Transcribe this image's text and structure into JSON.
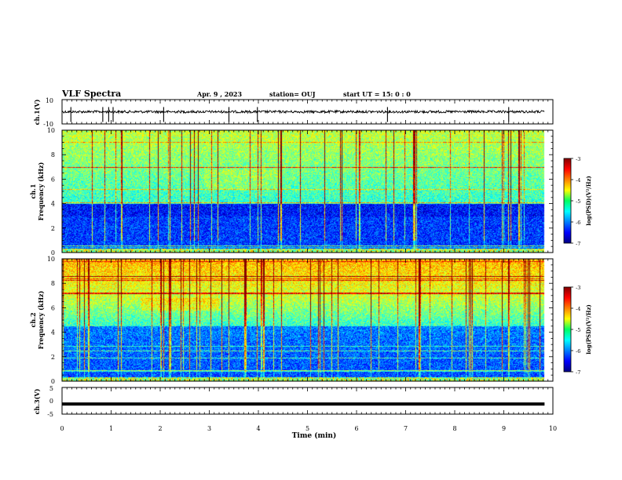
{
  "header": {
    "title": "VLF Spectra",
    "date": "Apr. 9 , 2023",
    "station": "station= OUJ",
    "start": "start UT = 15: 0 : 0"
  },
  "chart_data": [
    {
      "type": "line",
      "id": "ch1-waveform",
      "ylabel": "ch.1(V)",
      "ylim": [
        -10,
        10
      ],
      "yticks": [
        "10",
        "-10"
      ],
      "baseline": 0,
      "spikes_min": [
        0.18,
        0.83,
        0.95,
        1.04,
        2.07,
        3.4,
        3.98,
        6.63,
        9.1
      ],
      "xlim": [
        0,
        10
      ],
      "color": "#000000"
    },
    {
      "type": "heatmap",
      "id": "ch1-spectrogram",
      "ylabel": "ch.1\nFrequency (kHz)",
      "ylabel_line1": "ch.1",
      "ylabel_line2": "Frequency (kHz)",
      "xlim": [
        0,
        10
      ],
      "ylim": [
        0,
        10
      ],
      "yticks": [
        0,
        2,
        4,
        6,
        8,
        10
      ],
      "data_end_min": 9.83,
      "colorbar": {
        "range": [
          -7,
          -3
        ],
        "ticks": [
          "-3",
          "-4",
          "-5",
          "-6",
          "-7"
        ],
        "label": "log(PSD)(V²/Hz)",
        "colormap": "jet"
      }
    },
    {
      "type": "heatmap",
      "id": "ch2-spectrogram",
      "ylabel_line1": "ch.2",
      "ylabel_line2": "Frequency (kHz)",
      "xlim": [
        0,
        10
      ],
      "ylim": [
        0,
        10
      ],
      "yticks": [
        0,
        2,
        4,
        6,
        8,
        10
      ],
      "data_end_min": 9.83,
      "colorbar": {
        "range": [
          -7,
          -3
        ],
        "ticks": [
          "-3",
          "-4",
          "-5",
          "-6",
          "-7"
        ],
        "label": "log(PSD)(V²/Hz)",
        "colormap": "jet"
      }
    },
    {
      "type": "line",
      "id": "ch3-waveform",
      "ylabel": "ch.3(V)",
      "ylim": [
        -5,
        5
      ],
      "yticks": [
        "5",
        "0",
        "-5"
      ],
      "baseline": -1.2,
      "xlim": [
        0,
        9.83
      ],
      "color": "#000000"
    }
  ],
  "xaxis": {
    "label": "Time (min)",
    "ticks": [
      "0",
      "1",
      "2",
      "3",
      "4",
      "5",
      "6",
      "7",
      "8",
      "9",
      "10"
    ]
  }
}
